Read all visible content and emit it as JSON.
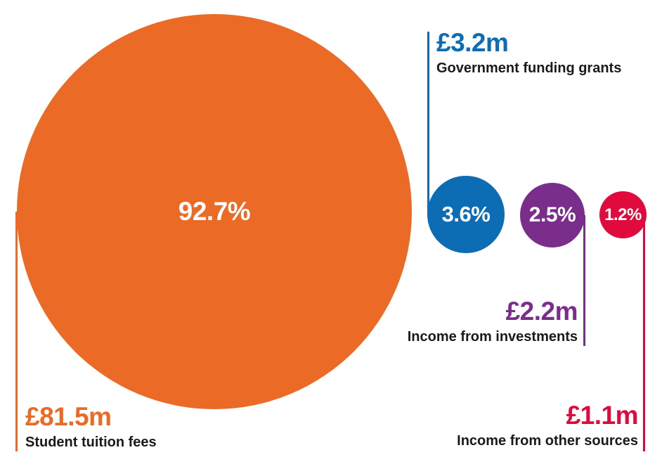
{
  "chart_data": {
    "type": "pie",
    "variant": "proportional-area-bubbles",
    "title": "",
    "unit": "£m",
    "legend_position": "none",
    "series": [
      {
        "name": "Student tuition fees",
        "value": 81.5,
        "value_label": "£81.5m",
        "percent": 92.7,
        "percent_label": "92.7%",
        "color": "#EB6A26"
      },
      {
        "name": "Government funding grants",
        "value": 3.2,
        "value_label": "£3.2m",
        "percent": 3.6,
        "percent_label": "3.6%",
        "color": "#0C6DB5"
      },
      {
        "name": "Income from investments",
        "value": 2.2,
        "value_label": "£2.2m",
        "percent": 2.5,
        "percent_label": "2.5%",
        "color": "#7B2D8B"
      },
      {
        "name": "Income from other sources",
        "value": 1.1,
        "value_label": "£1.1m",
        "percent": 1.2,
        "percent_label": "1.2%",
        "color": "#E00A3C"
      }
    ]
  },
  "colors": {
    "background": "#FFFFFF",
    "category_text": "#1A1A1A",
    "bubble_text": "#FFFFFF"
  }
}
